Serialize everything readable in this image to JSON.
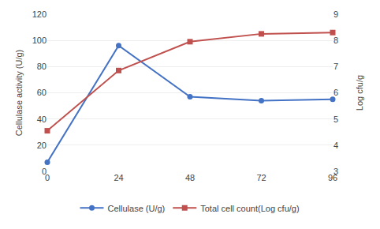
{
  "chart_data": {
    "type": "line",
    "x": [
      0,
      24,
      48,
      72,
      96
    ],
    "xlim": [
      0,
      96
    ],
    "xticks": [
      0,
      24,
      48,
      72,
      96
    ],
    "ylabel": "Cellulase activity (U/g)",
    "ylim": [
      0,
      120
    ],
    "yticks": [
      0,
      20,
      40,
      60,
      80,
      100,
      120
    ],
    "y2label": "Log cfu/g",
    "y2lim": [
      3.0,
      9.0
    ],
    "y2ticks": [
      3,
      4,
      5,
      6,
      7,
      8,
      9
    ],
    "grid": "y",
    "legend": "bottom",
    "series": [
      {
        "name": "Cellulase (U/g)",
        "color": "#4472C4",
        "marker": "circle",
        "values": [
          7,
          96,
          57,
          54,
          55
        ]
      },
      {
        "name": "Total cell count(Log cfu/g)",
        "color": "#C0504D",
        "marker": "square",
        "axis": "y2",
        "values": [
          4.55,
          6.85,
          7.95,
          8.25,
          8.3
        ]
      }
    ]
  }
}
